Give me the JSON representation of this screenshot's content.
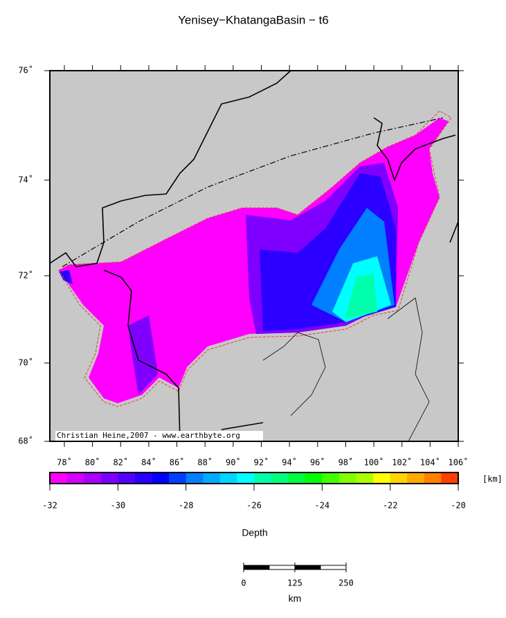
{
  "title": "Yenisey−KhatangaBasin − t6",
  "credit": "Christian Heine,2007 - www.earthbyte.org",
  "lat_labels": [
    "76˚",
    "74˚",
    "72˚",
    "70˚",
    "68˚"
  ],
  "lon_labels": [
    "78˚",
    "80˚",
    "82˚",
    "84˚",
    "86˚",
    "88˚",
    "90˚",
    "92˚",
    "94˚",
    "96˚",
    "98˚",
    "100˚",
    "102˚",
    "104˚",
    "106˚"
  ],
  "colorbar": {
    "label": "Depth",
    "unit": "[km]",
    "range": [
      -32,
      -20
    ],
    "ticks": [
      -32,
      -30,
      -28,
      -26,
      -24,
      -22,
      -20
    ],
    "colors": [
      "#ff00ff",
      "#d400ff",
      "#aa00ff",
      "#8000ff",
      "#5500ff",
      "#2b00ff",
      "#0000ff",
      "#0040ff",
      "#0080ff",
      "#00aaff",
      "#00d4ff",
      "#00ffff",
      "#00ffaa",
      "#00ff80",
      "#00ff40",
      "#00ff00",
      "#40ff00",
      "#80ff00",
      "#aaff00",
      "#ffff00",
      "#ffd400",
      "#ffaa00",
      "#ff8000",
      "#ff4000"
    ]
  },
  "scalebar": {
    "unit": "km",
    "range": [
      0,
      250
    ],
    "ticks": [
      0,
      125,
      250
    ]
  }
}
